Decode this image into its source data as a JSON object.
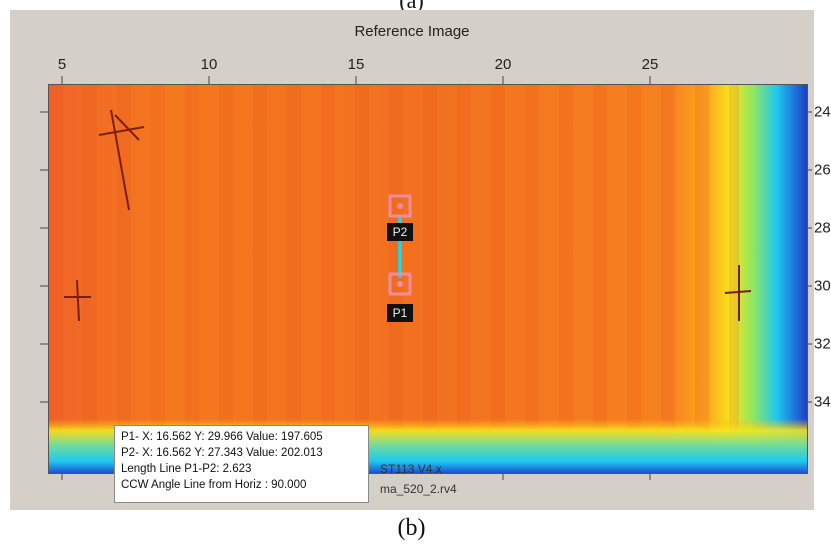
{
  "captions": {
    "top": "(a)",
    "bottom": "(b)"
  },
  "panel": {
    "title": "Reference Image",
    "x_ticks": [
      "5",
      "10",
      "15",
      "20",
      "25"
    ],
    "y_ticks": [
      "24",
      "26",
      "28",
      "30",
      "32",
      "34"
    ],
    "markers": {
      "p1_label": "P1",
      "p2_label": "P2"
    },
    "info": {
      "line1": "P1- X: 16.562 Y: 29.966 Value: 197.605",
      "line2": "P2- X: 16.562 Y: 27.343 Value: 202.013",
      "line3": "Length Line P1-P2: 2.623",
      "line4": "CCW Angle Line from Horiz : 90.000"
    },
    "partial_text": {
      "line1": "ST113 V4.x",
      "line2": "ma_520_2.rv4"
    }
  },
  "colors": {
    "panel_bg": "#d4d0c8",
    "heat_hot": "#f05a1e",
    "heat_warm": "#fa8c1e",
    "heat_edge_yellow": "#f5e61e",
    "heat_edge_cyan": "#1ec8f0",
    "heat_edge_blue": "#1e3cc8",
    "marker_pink": "#f08ca0",
    "line_cyan": "#28d2dc"
  }
}
